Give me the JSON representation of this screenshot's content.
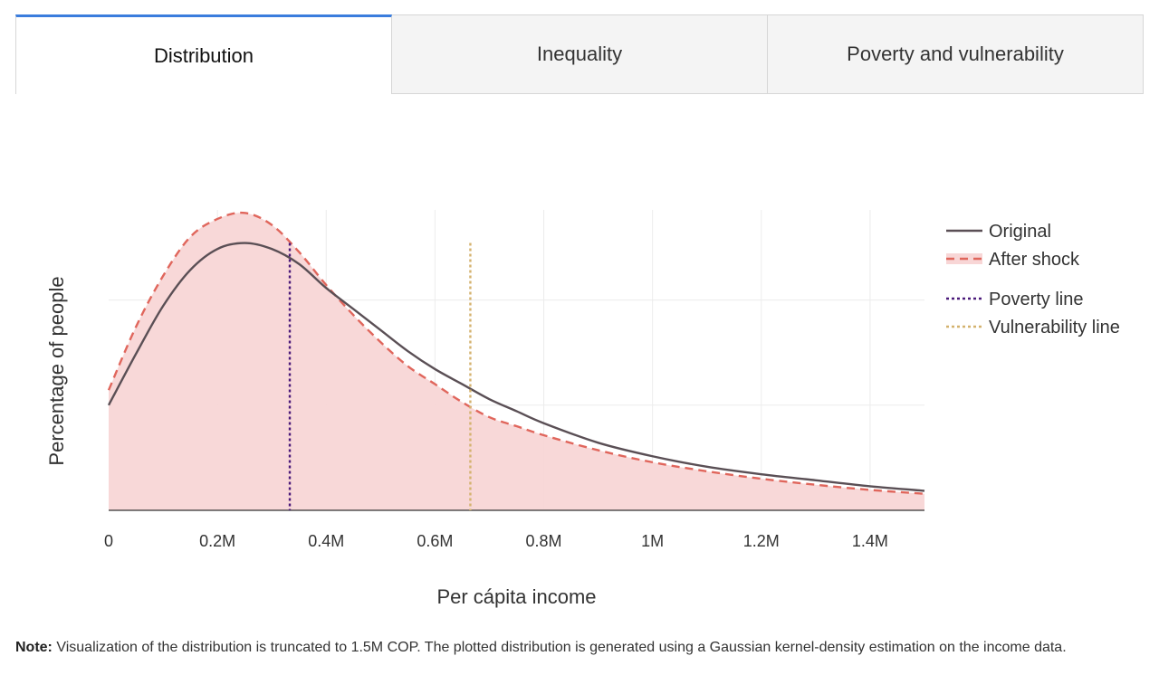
{
  "tabs": [
    {
      "label": "Distribution",
      "active": true
    },
    {
      "label": "Inequality",
      "active": false
    },
    {
      "label": "Poverty and vulnerability",
      "active": false
    }
  ],
  "note": {
    "label": "Note:",
    "text": " Visualization of the distribution is truncated to 1.5M COP. The plotted distribution is generated using a Gaussian kernel-density estimation on the income data."
  },
  "colors": {
    "original": "#5a4f55",
    "after_shock": "#e0665c",
    "fill": "#f8d6d6",
    "poverty": "#4b1a7a",
    "vulnerability": "#d4b26e",
    "grid": "#ececec",
    "axis": "#333333"
  },
  "chart_data": {
    "type": "line",
    "xlabel": "Per cápita income",
    "ylabel": "Percentage of people",
    "xlim": [
      0,
      1500000
    ],
    "ylim": [
      0,
      1.0
    ],
    "x_ticks": [
      0,
      200000,
      400000,
      600000,
      800000,
      1000000,
      1200000,
      1400000
    ],
    "x_tick_labels": [
      "0",
      "0.2M",
      "0.4M",
      "0.6M",
      "0.8M",
      "1M",
      "1.2M",
      "1.4M"
    ],
    "y_gridlines": [
      0.35,
      0.7
    ],
    "grid": true,
    "legend_position": "right",
    "series": [
      {
        "name": "Original",
        "style": "solid",
        "x": [
          0,
          50000,
          100000,
          150000,
          200000,
          250000,
          300000,
          350000,
          400000,
          450000,
          500000,
          550000,
          600000,
          650000,
          700000,
          750000,
          800000,
          900000,
          1000000,
          1100000,
          1200000,
          1300000,
          1400000,
          1500000
        ],
        "values": [
          0.35,
          0.52,
          0.68,
          0.8,
          0.87,
          0.89,
          0.87,
          0.82,
          0.74,
          0.67,
          0.6,
          0.53,
          0.47,
          0.42,
          0.37,
          0.33,
          0.29,
          0.225,
          0.18,
          0.145,
          0.12,
          0.1,
          0.08,
          0.065
        ]
      },
      {
        "name": "After shock",
        "style": "dashed",
        "filled": true,
        "x": [
          0,
          50000,
          100000,
          150000,
          200000,
          250000,
          300000,
          350000,
          400000,
          450000,
          500000,
          550000,
          600000,
          650000,
          700000,
          750000,
          800000,
          900000,
          1000000,
          1100000,
          1200000,
          1300000,
          1400000,
          1500000
        ],
        "values": [
          0.4,
          0.61,
          0.78,
          0.91,
          0.97,
          0.99,
          0.95,
          0.86,
          0.75,
          0.65,
          0.56,
          0.48,
          0.42,
          0.36,
          0.31,
          0.28,
          0.25,
          0.2,
          0.16,
          0.13,
          0.105,
          0.085,
          0.068,
          0.055
        ]
      }
    ],
    "reference_lines": [
      {
        "name": "Poverty line",
        "x": 333000,
        "top": 0.89,
        "style": "dotted"
      },
      {
        "name": "Vulnerability line",
        "x": 665000,
        "top": 0.89,
        "style": "dotted"
      }
    ]
  }
}
